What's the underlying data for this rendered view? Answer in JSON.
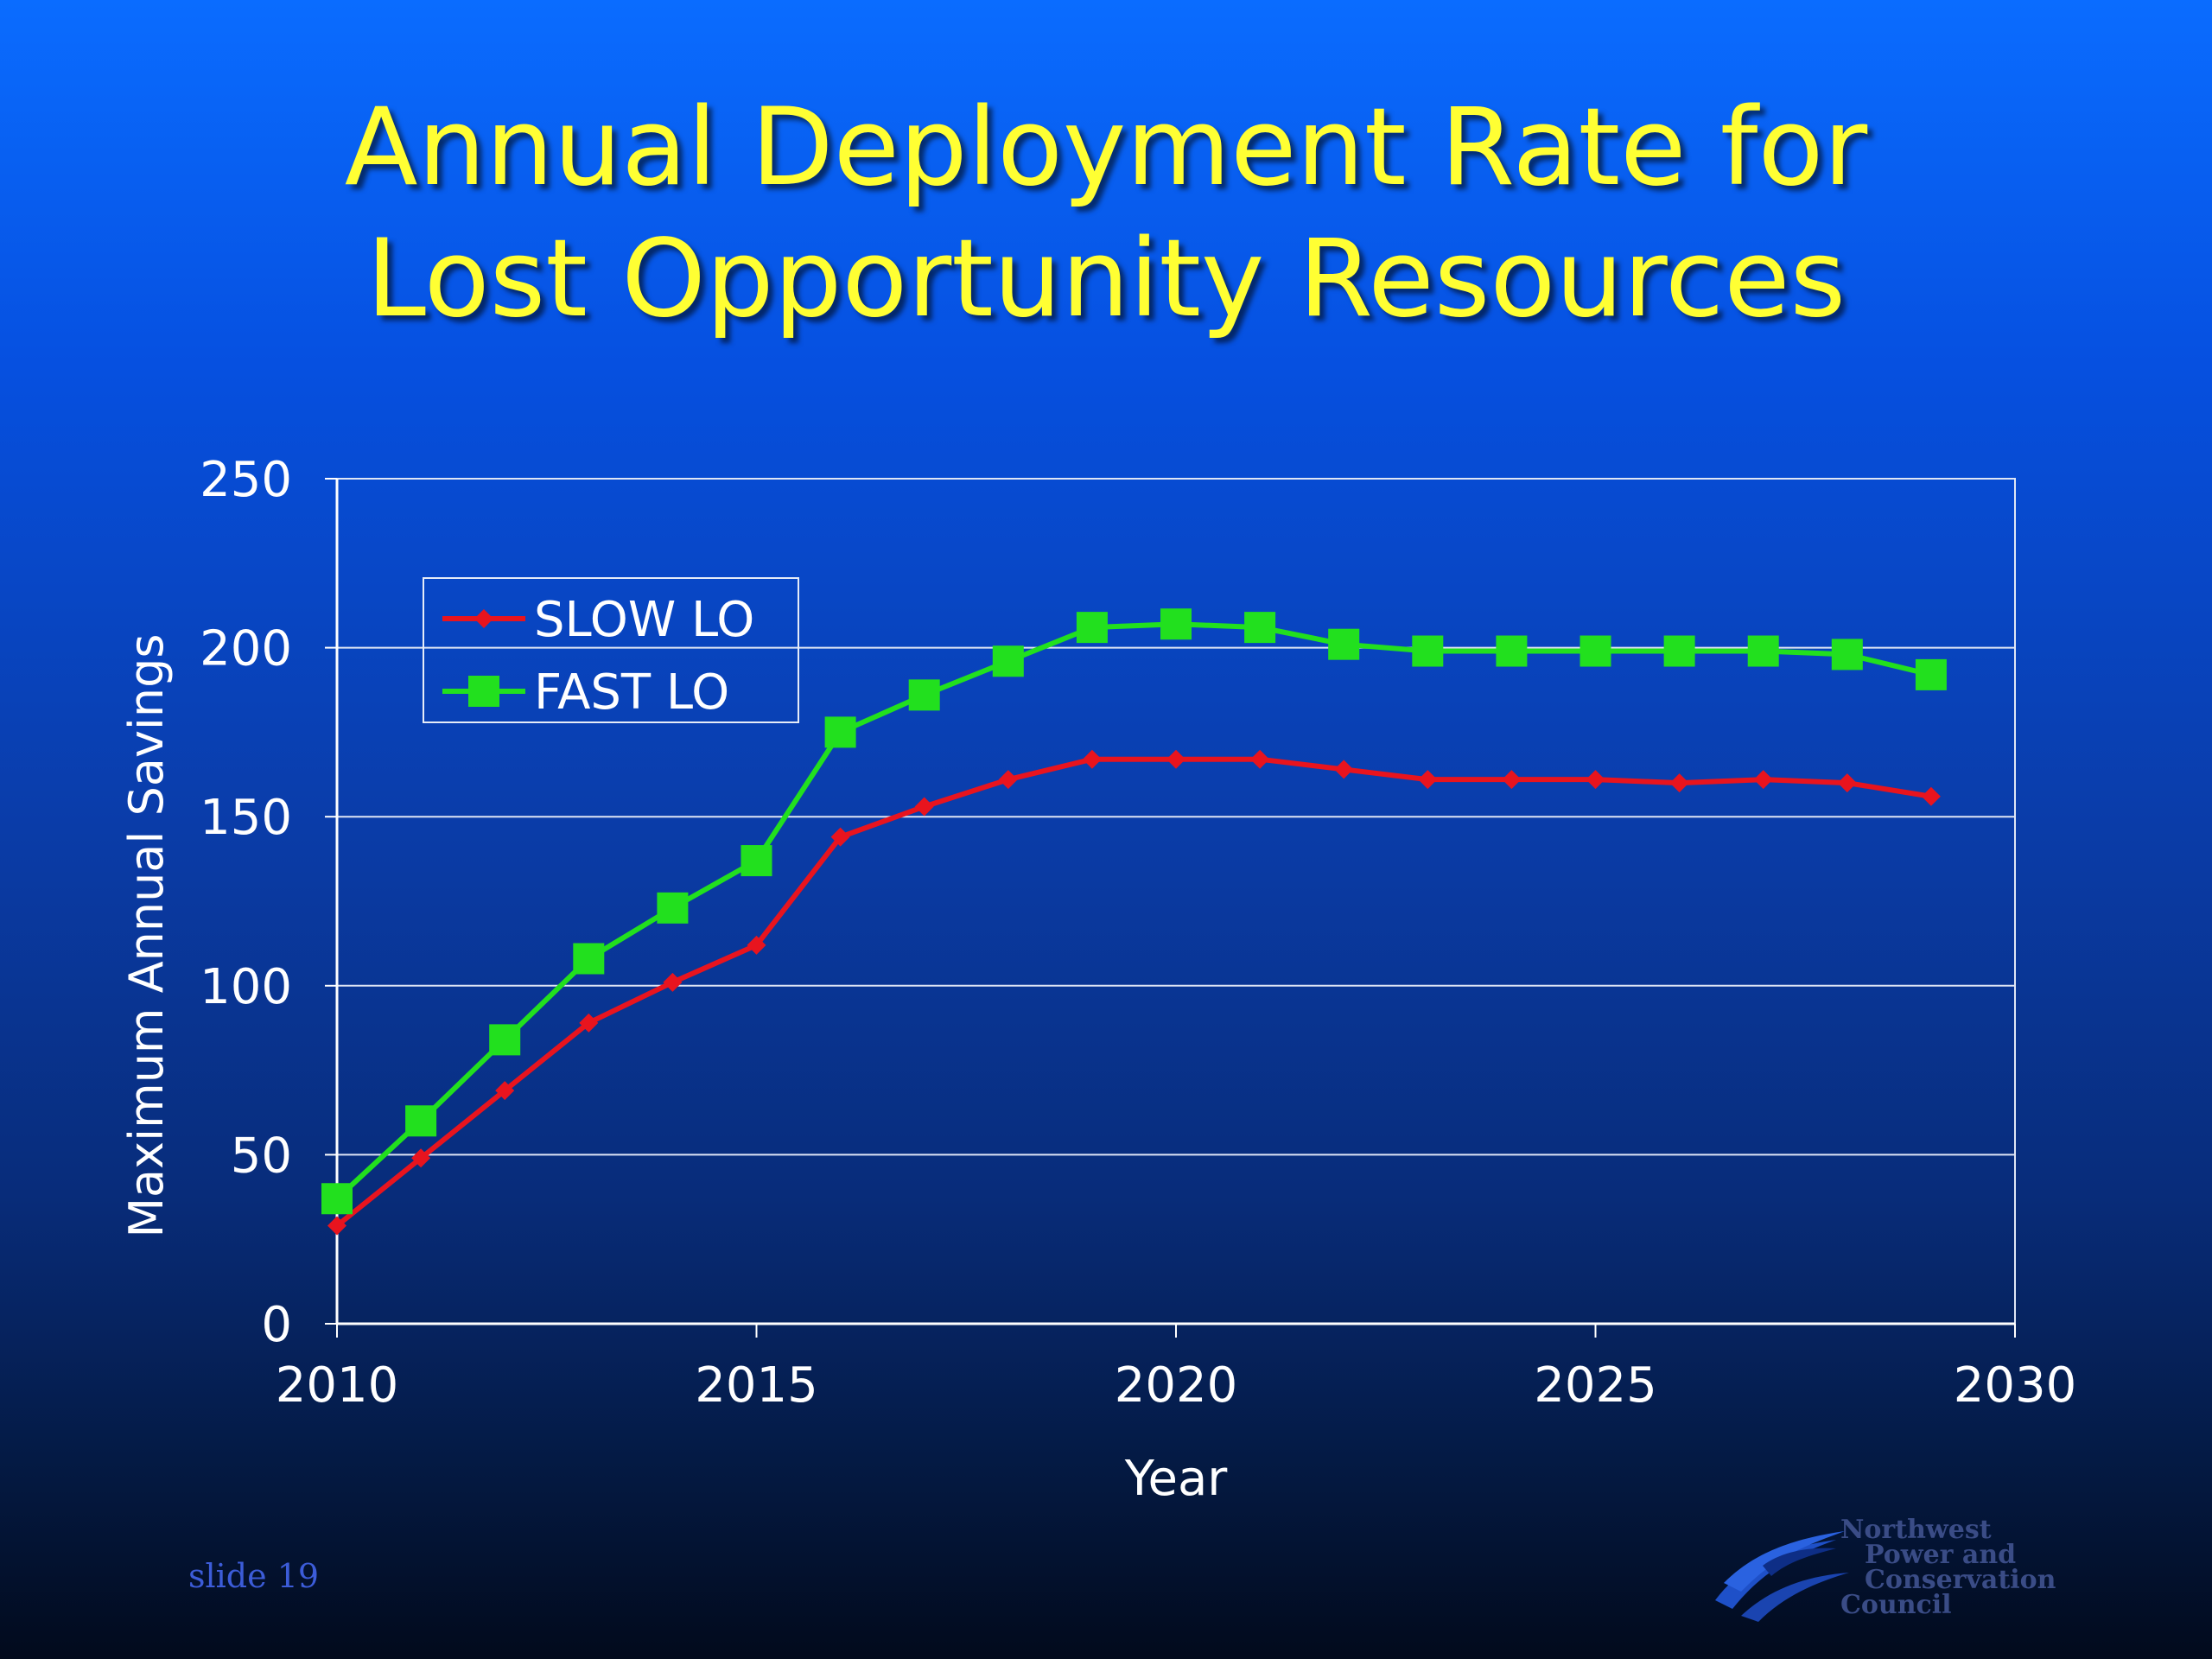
{
  "slide": {
    "title_line1": "Annual Deployment Rate for",
    "title_line2": "Lost Opportunity Resources",
    "slide_number": "slide 19",
    "logo": {
      "icon": "wave-logo-icon",
      "line1": "Northwest",
      "line2": "Power and",
      "line3": "Conservation",
      "line4": "Council"
    }
  },
  "chart_data": {
    "type": "line",
    "title": "",
    "xlabel": "Year",
    "ylabel": "Maximum Annual Savings",
    "xlim": [
      2010,
      2030
    ],
    "ylim": [
      0,
      250
    ],
    "x_ticks": [
      2010,
      2015,
      2020,
      2025,
      2030
    ],
    "y_ticks": [
      0,
      50,
      100,
      150,
      200,
      250
    ],
    "grid": "horizontal",
    "legend_position": "top-left",
    "series": [
      {
        "name": "SLOW LO",
        "color": "#e8141e",
        "marker": "diamond",
        "x": [
          2010,
          2011,
          2012,
          2013,
          2014,
          2015,
          2016,
          2017,
          2018,
          2019,
          2020,
          2021,
          2022,
          2023,
          2024,
          2025,
          2026,
          2027,
          2028,
          2029
        ],
        "values": [
          29,
          49,
          69,
          89,
          101,
          112,
          144,
          153,
          161,
          167,
          167,
          167,
          164,
          161,
          161,
          161,
          160,
          161,
          160,
          156
        ]
      },
      {
        "name": "FAST LO",
        "color": "#22e01e",
        "marker": "square",
        "x": [
          2010,
          2011,
          2012,
          2013,
          2014,
          2015,
          2016,
          2017,
          2018,
          2019,
          2020,
          2021,
          2022,
          2023,
          2024,
          2025,
          2026,
          2027,
          2028,
          2029
        ],
        "values": [
          37,
          60,
          84,
          108,
          123,
          137,
          175,
          186,
          196,
          206,
          207,
          206,
          201,
          199,
          199,
          199,
          199,
          199,
          198,
          192
        ]
      }
    ]
  }
}
